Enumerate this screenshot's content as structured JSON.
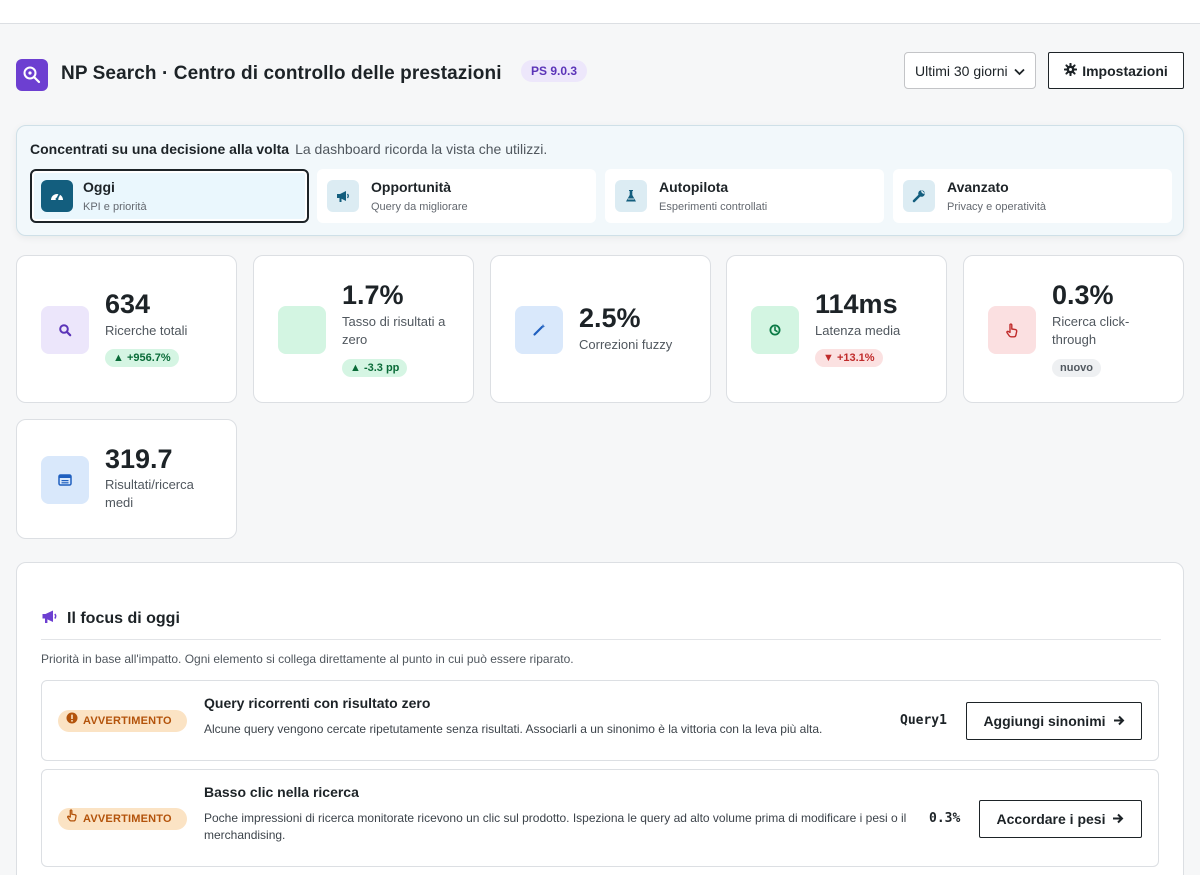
{
  "header": {
    "title": "NP Search · Centro di controllo delle prestazioni",
    "version": "PS 9.0.3",
    "range_selected": "Ultimi 30 giorni",
    "settings_label": "Impostazioni"
  },
  "focus": {
    "heading": "Concentrati su una decisione alla volta",
    "hint": "La dashboard ricorda la vista che utilizzi.",
    "views": [
      {
        "title": "Oggi",
        "subtitle": "KPI e priorità",
        "icon": "dashboard-icon"
      },
      {
        "title": "Opportunità",
        "subtitle": "Query da migliorare",
        "icon": "megaphone-icon"
      },
      {
        "title": "Autopilota",
        "subtitle": "Esperimenti controllati",
        "icon": "flask-icon"
      },
      {
        "title": "Avanzato",
        "subtitle": "Privacy e operatività",
        "icon": "wrench-icon"
      }
    ]
  },
  "kpis": [
    {
      "value": "634",
      "label": "Ricerche totali",
      "badge": "▲ +956.7%",
      "icon": "search-icon"
    },
    {
      "value": "1.7%",
      "label": "Tasso di risultati a zero",
      "badge": "▲ -3.3 pp",
      "icon": ""
    },
    {
      "value": "2.5%",
      "label": "Correzioni fuzzy",
      "badge": "",
      "icon": "magic-wand-icon"
    },
    {
      "value": "114ms",
      "label": "Latenza media",
      "badge": "▼ +13.1%",
      "icon": "clock-icon"
    },
    {
      "value": "0.3%",
      "label": "Ricerca click-through",
      "badge": "nuovo",
      "icon": "pointer-hand-icon"
    },
    {
      "value": "319.7",
      "label": "Risultati/ricerca medi",
      "badge": "",
      "icon": "list-icon"
    }
  ],
  "today": {
    "title": "Il focus di oggi",
    "intro": "Priorità in base all'impatto. Ogni elemento si collega direttamente al punto in cui può essere riparato.",
    "items": [
      {
        "severity": "AVVERTIMENTO",
        "title": "Query ricorrenti con risultato zero",
        "description": "Alcune query vengono cercate ripetutamente senza risultati. Associarli a un sinonimo è la vittoria con la leva più alta.",
        "metric": "Query1",
        "action": "Aggiungi sinonimi"
      },
      {
        "severity": "AVVERTIMENTO",
        "title": "Basso clic nella ricerca",
        "description": "Poche impressioni di ricerca monitorate ricevono un clic sul prodotto. Ispeziona le query ad alto volume prima di modificare i pesi o il merchandising.",
        "metric": "0.3%",
        "action": "Accordare i pesi"
      }
    ]
  },
  "colors": {
    "brand": "#6d3fd1",
    "accent": "#135e7e",
    "positive": "#0a6b38",
    "negative": "#c02b2b",
    "warning": "#b3530b"
  }
}
